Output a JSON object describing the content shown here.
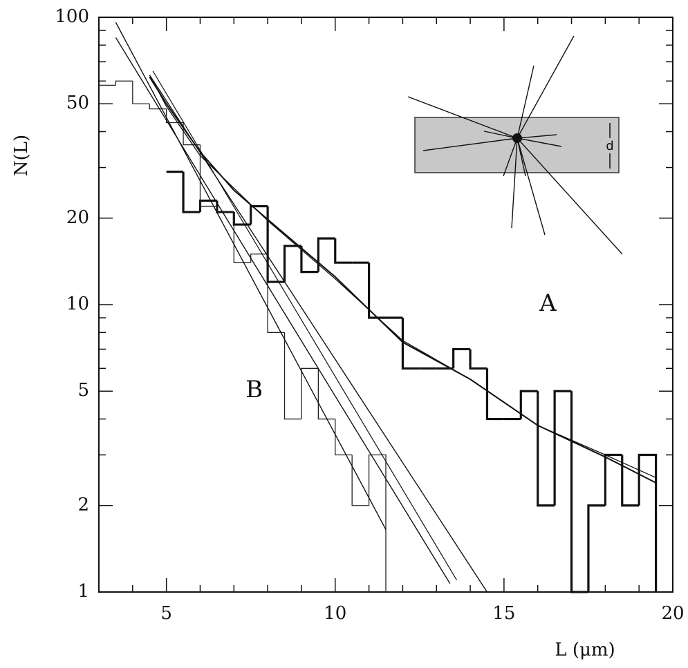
{
  "chart_data": {
    "type": "histogram",
    "x_label": "L (μm)",
    "y_label": "N(L)",
    "xlim": [
      3,
      20
    ],
    "xticks": [
      5,
      10,
      15,
      20
    ],
    "xminorticks": [
      3,
      4,
      6,
      7,
      8,
      9,
      11,
      12,
      13,
      14,
      16,
      17,
      18,
      19
    ],
    "ylim": [
      1,
      100
    ],
    "log_y": true,
    "yticks": [
      1,
      2,
      5,
      10,
      20,
      50,
      100
    ],
    "yminorticks": [
      3,
      4,
      6,
      7,
      8,
      9,
      30,
      40,
      60,
      70,
      80,
      90
    ],
    "series": [
      {
        "name": "A",
        "color": "#111111",
        "stroke_width": 3.2,
        "label_at": [
          16.3,
          10
        ],
        "bins": [
          5,
          5.5,
          6,
          6.5,
          7,
          7.5,
          8,
          8.5,
          9,
          9.5,
          10,
          10.5,
          11,
          11.5,
          12,
          12.5,
          13,
          13.5,
          14,
          14.5,
          15,
          15.5,
          16,
          16.5,
          17,
          17.5,
          18,
          18.5,
          19,
          19.5
        ],
        "values": [
          29,
          21,
          23,
          21,
          19,
          22,
          12,
          16,
          13,
          17,
          14,
          14,
          9,
          9,
          6,
          6,
          6,
          7,
          6,
          4,
          4,
          5,
          2,
          5,
          0,
          2,
          3,
          2,
          3
        ]
      },
      {
        "name": "B",
        "color": "#222222",
        "stroke_width": 1.3,
        "label_at": [
          7.6,
          5
        ],
        "bins": [
          3,
          3.5,
          4,
          4.5,
          5,
          5.5,
          6,
          6.5,
          7,
          7.5,
          8,
          8.5,
          9,
          9.5,
          10,
          10.5,
          11,
          11.5
        ],
        "values": [
          58,
          60,
          50,
          48,
          43,
          36,
          22,
          21,
          14,
          15,
          8,
          4,
          6,
          4,
          3,
          2,
          3
        ]
      }
    ],
    "fits": [
      {
        "color": "#111111",
        "stroke_width": 2,
        "x": [
          4.5,
          5,
          6,
          7,
          8,
          10,
          12,
          14,
          16,
          18,
          19.5
        ],
        "values": [
          62,
          50,
          34,
          25,
          19.8,
          12.5,
          7.4,
          5.5,
          3.8,
          2.95,
          2.4
        ]
      },
      {
        "color": "#111111",
        "stroke_width": 1.3,
        "x": [
          4.6,
          5,
          6,
          8,
          10,
          12,
          14,
          16,
          18,
          19.5
        ],
        "values": [
          60,
          49,
          33,
          19.6,
          12.3,
          7.5,
          5.5,
          3.8,
          3.0,
          2.5
        ]
      },
      {
        "color": "#111111",
        "stroke_width": 1.4,
        "x": [
          3.5,
          11.5
        ],
        "values": [
          96,
          1.65
        ]
      },
      {
        "color": "#111111",
        "stroke_width": 1.4,
        "x": [
          3.5,
          13.4
        ],
        "values": [
          85,
          1.07
        ]
      },
      {
        "color": "#111111",
        "stroke_width": 1.4,
        "x": [
          4.5,
          14.5
        ],
        "values": [
          63,
          1
        ]
      },
      {
        "color": "#111111",
        "stroke_width": 1.2,
        "x": [
          4.6,
          13.6
        ],
        "values": [
          65,
          1.1
        ]
      }
    ],
    "inset_label": "d"
  }
}
